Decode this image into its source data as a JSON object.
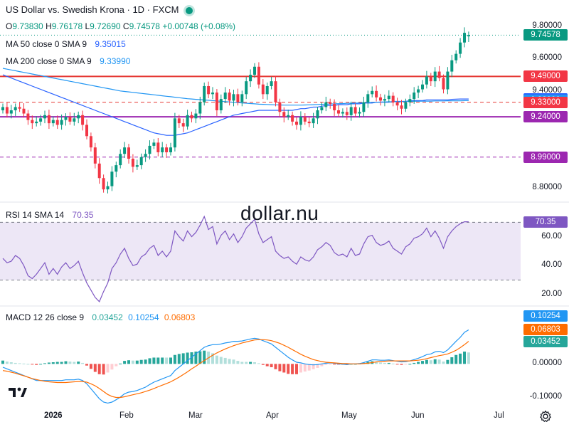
{
  "header": {
    "title": "US Dollar vs. Swedish Krona · 1D · FXCM",
    "ohlc": [
      {
        "k": "O",
        "v": "9.73830"
      },
      {
        "k": "H",
        "v": "9.76178"
      },
      {
        "k": "L",
        "v": "9.72690"
      },
      {
        "k": "C",
        "v": "9.74578"
      }
    ],
    "change": "+0.00748 (+0.08%)",
    "ma50_label": "MA 50 close 0 SMA 9",
    "ma50_value": "9.35015",
    "ma200_label": "MA 200 close 0 SMA 9",
    "ma200_value": "9.33990",
    "rsi_label": "RSI 14 SMA 14",
    "rsi_value": "70.35",
    "macd_label": "MACD 12 26 close 9",
    "macd_hist": "0.03452",
    "macd_line": "0.10254",
    "macd_signal": "0.06803"
  },
  "watermark": "dollar.nu",
  "colors": {
    "up": "#089981",
    "down": "#f23645",
    "ma50": "#2962ff",
    "ma200": "#2196f3",
    "h_red": "#e53935",
    "h_purple": "#9c27b0",
    "rsi": "#7e57c2",
    "rsi_band": "#ede7f6",
    "macd": "#2196f3",
    "signal": "#ff6d00",
    "hist_up_strong": "#26a69a",
    "hist_up_weak": "#b2dfdb",
    "hist_down_strong": "#ef5350",
    "hist_down_weak": "#ffcdd2"
  },
  "price_axis": {
    "ticks": [
      "9.80000",
      "9.60000",
      "9.40000",
      "8.80000"
    ],
    "tick_values": [
      9.8,
      9.6,
      9.4,
      8.8
    ],
    "tags": [
      {
        "text": "9.74578",
        "value": 9.74578,
        "color": "#089981"
      },
      {
        "text": "9.49000",
        "value": 9.49,
        "color": "#f23645"
      },
      {
        "text": "9.35015",
        "value": 9.35015,
        "color": "#2962ff"
      },
      {
        "text": "9.33990",
        "value": 9.3399,
        "color": "#2196f3"
      },
      {
        "text": "9.33000",
        "value": 9.33,
        "color": "#f23645"
      },
      {
        "text": "9.24000",
        "value": 9.24,
        "color": "#9c27b0"
      },
      {
        "text": "8.99000",
        "value": 8.99,
        "color": "#9c27b0"
      }
    ]
  },
  "rsi_axis": {
    "ticks": [
      "60.00",
      "40.00",
      "20.00"
    ],
    "tick_values": [
      60,
      40,
      20
    ],
    "tag": "70.35"
  },
  "macd_axis": {
    "ticks": [
      "0.00000",
      "-0.10000"
    ],
    "tick_values": [
      0,
      -0.1
    ],
    "tags": [
      {
        "text": "0.10254",
        "value": 0.10254,
        "color": "#2196f3"
      },
      {
        "text": "0.06803",
        "value": 0.06803,
        "color": "#ff6d00"
      },
      {
        "text": "0.03452",
        "value": 0.03452,
        "color": "#26a69a"
      }
    ]
  },
  "x_axis": {
    "labels": [
      "2026",
      "Feb",
      "Mar",
      "Apr",
      "May",
      "Jun",
      "Jul"
    ]
  },
  "chart_data": {
    "type": "candlestick",
    "title": "US Dollar vs. Swedish Krona · 1D · FXCM",
    "price_range": [
      8.72,
      9.84
    ],
    "rsi_range": [
      13,
      82
    ],
    "macd_range": [
      -0.13,
      0.17
    ],
    "horizontal_levels": [
      {
        "value": 9.49,
        "style": "solid",
        "color": "#e53935"
      },
      {
        "value": 9.24,
        "style": "solid",
        "color": "#9c27b0"
      },
      {
        "value": 9.33,
        "style": "dashed",
        "color": "#e53935"
      },
      {
        "value": 8.99,
        "style": "dashed",
        "color": "#9c27b0"
      }
    ],
    "closes": [
      9.3,
      9.26,
      9.28,
      9.3,
      9.29,
      9.26,
      9.22,
      9.2,
      9.21,
      9.23,
      9.25,
      9.2,
      9.22,
      9.19,
      9.22,
      9.24,
      9.21,
      9.23,
      9.25,
      9.19,
      9.12,
      9.05,
      8.95,
      8.86,
      8.79,
      8.81,
      8.9,
      8.94,
      9.01,
      9.05,
      8.98,
      8.93,
      8.94,
      8.99,
      9.01,
      9.06,
      9.08,
      9.02,
      9.05,
      9.02,
      9.05,
      9.23,
      9.2,
      9.18,
      9.25,
      9.23,
      9.26,
      9.33,
      9.43,
      9.38,
      9.39,
      9.28,
      9.35,
      9.39,
      9.34,
      9.38,
      9.33,
      9.38,
      9.46,
      9.5,
      9.55,
      9.44,
      9.38,
      9.43,
      9.46,
      9.33,
      9.27,
      9.24,
      9.25,
      9.21,
      9.19,
      9.24,
      9.21,
      9.2,
      9.23,
      9.28,
      9.3,
      9.33,
      9.32,
      9.28,
      9.26,
      9.27,
      9.25,
      9.3,
      9.26,
      9.27,
      9.33,
      9.38,
      9.4,
      9.36,
      9.34,
      9.35,
      9.37,
      9.33,
      9.31,
      9.29,
      9.33,
      9.35,
      9.39,
      9.41,
      9.44,
      9.49,
      9.46,
      9.52,
      9.48,
      9.41,
      9.52,
      9.59,
      9.63,
      9.7,
      9.76,
      9.74578
    ],
    "opens": [
      9.28,
      9.3,
      9.26,
      9.28,
      9.3,
      9.29,
      9.26,
      9.22,
      9.2,
      9.21,
      9.23,
      9.25,
      9.2,
      9.22,
      9.19,
      9.22,
      9.24,
      9.21,
      9.23,
      9.25,
      9.19,
      9.12,
      9.05,
      8.95,
      8.86,
      8.79,
      8.81,
      8.9,
      8.94,
      9.01,
      9.05,
      8.98,
      8.93,
      8.94,
      8.99,
      9.01,
      9.06,
      9.08,
      9.02,
      9.05,
      9.02,
      9.05,
      9.23,
      9.2,
      9.18,
      9.25,
      9.23,
      9.26,
      9.33,
      9.43,
      9.38,
      9.39,
      9.28,
      9.35,
      9.39,
      9.34,
      9.38,
      9.33,
      9.38,
      9.46,
      9.5,
      9.55,
      9.44,
      9.38,
      9.43,
      9.46,
      9.33,
      9.27,
      9.24,
      9.25,
      9.21,
      9.19,
      9.24,
      9.21,
      9.2,
      9.23,
      9.28,
      9.3,
      9.33,
      9.32,
      9.28,
      9.26,
      9.27,
      9.25,
      9.3,
      9.26,
      9.27,
      9.33,
      9.38,
      9.4,
      9.36,
      9.34,
      9.35,
      9.37,
      9.33,
      9.31,
      9.29,
      9.33,
      9.35,
      9.39,
      9.41,
      9.44,
      9.49,
      9.46,
      9.52,
      9.48,
      9.41,
      9.52,
      9.59,
      9.63,
      9.7,
      9.7383
    ],
    "ma50": [
      9.5,
      9.49,
      9.48,
      9.47,
      9.46,
      9.45,
      9.44,
      9.43,
      9.42,
      9.41,
      9.4,
      9.39,
      9.38,
      9.37,
      9.36,
      9.35,
      9.34,
      9.33,
      9.32,
      9.31,
      9.3,
      9.29,
      9.28,
      9.27,
      9.26,
      9.25,
      9.24,
      9.23,
      9.22,
      9.21,
      9.2,
      9.19,
      9.18,
      9.17,
      9.16,
      9.15,
      9.14,
      9.135,
      9.13,
      9.125,
      9.125,
      9.125,
      9.13,
      9.135,
      9.14,
      9.15,
      9.16,
      9.17,
      9.18,
      9.19,
      9.2,
      9.21,
      9.22,
      9.23,
      9.24,
      9.25,
      9.255,
      9.26,
      9.265,
      9.27,
      9.275,
      9.28,
      9.28,
      9.28,
      9.28,
      9.28,
      9.28,
      9.28,
      9.28,
      9.28,
      9.285,
      9.29,
      9.29,
      9.295,
      9.3,
      9.3,
      9.305,
      9.31,
      9.31,
      9.31,
      9.315,
      9.315,
      9.315,
      9.32,
      9.32,
      9.32,
      9.325,
      9.325,
      9.325,
      9.33,
      9.33,
      9.33,
      9.33,
      9.335,
      9.335,
      9.335,
      9.335,
      9.34,
      9.34,
      9.34,
      9.34,
      9.345,
      9.345,
      9.345,
      9.345,
      9.345,
      9.345,
      9.348,
      9.349,
      9.35,
      9.35,
      9.35015
    ],
    "ma200": [
      9.54,
      9.535,
      9.53,
      9.525,
      9.52,
      9.515,
      9.51,
      9.505,
      9.5,
      9.495,
      9.49,
      9.485,
      9.48,
      9.475,
      9.47,
      9.465,
      9.46,
      9.455,
      9.45,
      9.445,
      9.44,
      9.435,
      9.43,
      9.425,
      9.42,
      9.415,
      9.41,
      9.405,
      9.4,
      9.397,
      9.394,
      9.391,
      9.388,
      9.385,
      9.382,
      9.379,
      9.376,
      9.373,
      9.37,
      9.367,
      9.364,
      9.361,
      9.358,
      9.355,
      9.352,
      9.35,
      9.348,
      9.346,
      9.344,
      9.342,
      9.34,
      9.338,
      9.336,
      9.334,
      9.332,
      9.33,
      9.328,
      9.326,
      9.324,
      9.322,
      9.32,
      9.318,
      9.317,
      9.316,
      9.315,
      9.314,
      9.313,
      9.312,
      9.312,
      9.312,
      9.312,
      9.312,
      9.313,
      9.314,
      9.315,
      9.316,
      9.317,
      9.318,
      9.319,
      9.32,
      9.321,
      9.322,
      9.323,
      9.324,
      9.325,
      9.326,
      9.327,
      9.328,
      9.329,
      9.33,
      9.331,
      9.332,
      9.333,
      9.333,
      9.334,
      9.334,
      9.335,
      9.335,
      9.336,
      9.336,
      9.337,
      9.337,
      9.337,
      9.338,
      9.338,
      9.338,
      9.339,
      9.339,
      9.339,
      9.339,
      9.3399,
      9.3399
    ],
    "rsi": [
      45,
      42,
      43,
      47,
      45,
      40,
      33,
      31,
      34,
      38,
      42,
      34,
      38,
      34,
      39,
      42,
      38,
      40,
      43,
      35,
      28,
      23,
      18,
      15,
      22,
      28,
      38,
      42,
      48,
      52,
      45,
      40,
      41,
      46,
      48,
      52,
      54,
      47,
      50,
      46,
      50,
      64,
      60,
      57,
      64,
      60,
      63,
      68,
      74,
      65,
      67,
      55,
      61,
      64,
      58,
      62,
      56,
      60,
      66,
      69,
      72,
      62,
      56,
      58,
      60,
      50,
      47,
      45,
      46,
      43,
      41,
      46,
      44,
      43,
      46,
      51,
      53,
      56,
      54,
      49,
      47,
      48,
      46,
      52,
      47,
      48,
      55,
      60,
      61,
      56,
      54,
      55,
      57,
      52,
      50,
      48,
      53,
      55,
      59,
      60,
      62,
      66,
      60,
      64,
      59,
      52,
      60,
      64,
      67,
      69,
      70.35,
      70.35
    ],
    "macd": [
      -0.01,
      -0.015,
      -0.02,
      -0.025,
      -0.03,
      -0.035,
      -0.04,
      -0.045,
      -0.05,
      -0.05,
      -0.05,
      -0.05,
      -0.05,
      -0.05,
      -0.05,
      -0.048,
      -0.048,
      -0.048,
      -0.046,
      -0.05,
      -0.06,
      -0.075,
      -0.09,
      -0.105,
      -0.115,
      -0.118,
      -0.115,
      -0.108,
      -0.1,
      -0.09,
      -0.085,
      -0.083,
      -0.08,
      -0.075,
      -0.07,
      -0.062,
      -0.055,
      -0.05,
      -0.045,
      -0.04,
      -0.035,
      -0.02,
      -0.01,
      0.0,
      0.01,
      0.02,
      0.03,
      0.04,
      0.05,
      0.055,
      0.058,
      0.058,
      0.06,
      0.063,
      0.065,
      0.068,
      0.068,
      0.069,
      0.072,
      0.075,
      0.077,
      0.075,
      0.07,
      0.065,
      0.06,
      0.05,
      0.04,
      0.03,
      0.02,
      0.012,
      0.005,
      0.003,
      0.0,
      -0.002,
      -0.003,
      -0.002,
      0.0,
      0.002,
      0.003,
      0.002,
      0.0,
      -0.001,
      -0.002,
      0.0,
      0.0,
      0.001,
      0.004,
      0.008,
      0.012,
      0.012,
      0.011,
      0.011,
      0.012,
      0.01,
      0.008,
      0.006,
      0.007,
      0.009,
      0.013,
      0.017,
      0.022,
      0.028,
      0.03,
      0.036,
      0.038,
      0.034,
      0.042,
      0.055,
      0.068,
      0.08,
      0.095,
      0.10254
    ],
    "signal": [
      -0.02,
      -0.022,
      -0.025,
      -0.028,
      -0.032,
      -0.036,
      -0.04,
      -0.044,
      -0.047,
      -0.05,
      -0.052,
      -0.054,
      -0.055,
      -0.056,
      -0.056,
      -0.056,
      -0.055,
      -0.054,
      -0.053,
      -0.053,
      -0.055,
      -0.06,
      -0.066,
      -0.074,
      -0.083,
      -0.092,
      -0.098,
      -0.101,
      -0.101,
      -0.099,
      -0.096,
      -0.093,
      -0.09,
      -0.087,
      -0.083,
      -0.079,
      -0.074,
      -0.069,
      -0.064,
      -0.059,
      -0.054,
      -0.047,
      -0.04,
      -0.032,
      -0.024,
      -0.015,
      -0.007,
      0.002,
      0.01,
      0.018,
      0.026,
      0.033,
      0.039,
      0.045,
      0.05,
      0.055,
      0.059,
      0.063,
      0.066,
      0.069,
      0.072,
      0.073,
      0.073,
      0.072,
      0.07,
      0.066,
      0.062,
      0.056,
      0.05,
      0.043,
      0.036,
      0.029,
      0.023,
      0.018,
      0.013,
      0.01,
      0.007,
      0.005,
      0.004,
      0.003,
      0.002,
      0.001,
      0.001,
      0.0,
      0.0,
      0.0,
      0.001,
      0.002,
      0.004,
      0.006,
      0.007,
      0.008,
      0.009,
      0.009,
      0.009,
      0.009,
      0.009,
      0.009,
      0.01,
      0.011,
      0.013,
      0.016,
      0.019,
      0.022,
      0.025,
      0.027,
      0.03,
      0.035,
      0.041,
      0.049,
      0.058,
      0.06803
    ]
  }
}
